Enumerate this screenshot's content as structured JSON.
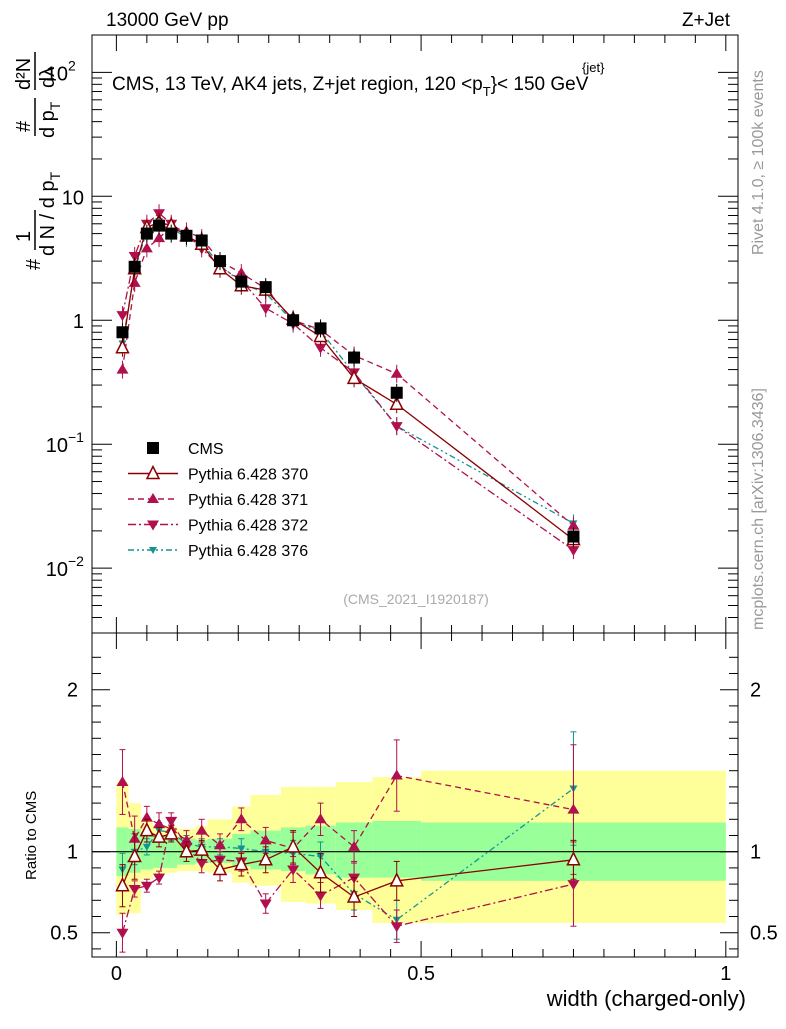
{
  "header": {
    "left": "13000 GeV pp",
    "right": "Z+Jet"
  },
  "side": {
    "rivet": "Rivet 4.1.0, ≥ 100k events",
    "mcplots": "mcplots.cern.ch [arXiv:1306.3436]"
  },
  "chart_data": {
    "type": "scatter",
    "title": "CMS, 13 TeV, AK4 jets, Z+jet region, 120 <p",
    "title_sup": "{jet}",
    "title_sub": "T",
    "title_end": "}< 150 GeV",
    "analysis_tag": "(CMS_2021_I1920187)",
    "xlabel": "width (charged-only)",
    "ylabel": {
      "hash": "#",
      "one": "1",
      "dN_pre": "d N / d p",
      "sub_T": "T",
      "dp_num": "#",
      "dp_den": "d p",
      "d2N": "d²N",
      "dlam": "dλ"
    },
    "ratio_ylabel": "Ratio to CMS",
    "xlim": [
      -0.04,
      1.02
    ],
    "ylim": [
      0.003,
      200
    ],
    "yscale": "log",
    "ratio_ylim": [
      0.35,
      2.35
    ],
    "x_ticks": [
      {
        "v": 0,
        "label": "0"
      },
      {
        "v": 0.5,
        "label": "0.5"
      },
      {
        "v": 1,
        "label": "1"
      }
    ],
    "y_ticks": [
      {
        "v": 100,
        "base": "10",
        "exp": "2"
      },
      {
        "v": 10,
        "base": "10",
        "exp": ""
      },
      {
        "v": 1,
        "base": "1",
        "exp": ""
      },
      {
        "v": 0.1,
        "base": "10",
        "exp": "−1"
      },
      {
        "v": 0.01,
        "base": "10",
        "exp": "−2"
      }
    ],
    "ratio_ticks": [
      {
        "v": 2,
        "label": "2"
      },
      {
        "v": 1,
        "label": "1"
      },
      {
        "v": 0.5,
        "label": "0.5"
      }
    ],
    "x": [
      0.01,
      0.03,
      0.05,
      0.07,
      0.09,
      0.115,
      0.14,
      0.17,
      0.205,
      0.245,
      0.29,
      0.335,
      0.39,
      0.46,
      0.75
    ],
    "x_lo": [
      0.0,
      0.02,
      0.04,
      0.06,
      0.08,
      0.1,
      0.13,
      0.15,
      0.19,
      0.22,
      0.27,
      0.31,
      0.36,
      0.42,
      0.5
    ],
    "x_hi": [
      0.02,
      0.04,
      0.06,
      0.08,
      0.1,
      0.13,
      0.15,
      0.19,
      0.22,
      0.27,
      0.31,
      0.36,
      0.42,
      0.5,
      1.0
    ],
    "band_green": [
      [
        0.85,
        1.15
      ],
      [
        0.87,
        1.14
      ],
      [
        0.89,
        1.12
      ],
      [
        0.9,
        1.1
      ],
      [
        0.9,
        1.1
      ],
      [
        0.92,
        1.08
      ],
      [
        0.93,
        1.07
      ],
      [
        0.93,
        1.08
      ],
      [
        0.91,
        1.11
      ],
      [
        0.89,
        1.13
      ],
      [
        0.88,
        1.15
      ],
      [
        0.86,
        1.16
      ],
      [
        0.84,
        1.18
      ],
      [
        0.84,
        1.19
      ],
      [
        0.82,
        1.18
      ]
    ],
    "band_yellow": [
      [
        0.61,
        1.43
      ],
      [
        0.62,
        1.3
      ],
      [
        0.83,
        1.19
      ],
      [
        0.86,
        1.16
      ],
      [
        0.87,
        1.16
      ],
      [
        0.88,
        1.14
      ],
      [
        0.88,
        1.16
      ],
      [
        0.87,
        1.2
      ],
      [
        0.81,
        1.28
      ],
      [
        0.79,
        1.35
      ],
      [
        0.69,
        1.4
      ],
      [
        0.68,
        1.4
      ],
      [
        0.64,
        1.43
      ],
      [
        0.56,
        1.46
      ],
      [
        0.56,
        1.5
      ]
    ],
    "series": [
      {
        "name": "CMS",
        "color": "#000000",
        "marker": "square",
        "line": "none",
        "values": [
          0.8,
          2.7,
          5.0,
          5.8,
          5.0,
          4.8,
          4.4,
          3.0,
          2.05,
          1.85,
          1.0,
          0.86,
          0.5,
          0.26,
          0.018
        ]
      },
      {
        "name": "Pythia 6.428 370",
        "color": "#8b0000",
        "marker": "open-triangle-up",
        "line": "solid",
        "values": [
          0.6,
          2.6,
          5.6,
          6.2,
          5.8,
          4.8,
          4.1,
          2.6,
          1.9,
          1.75,
          1.02,
          0.74,
          0.34,
          0.21,
          0.017
        ],
        "ratio": [
          0.79,
          0.97,
          1.13,
          1.09,
          1.11,
          1.0,
          1.01,
          0.89,
          0.92,
          0.95,
          1.03,
          0.87,
          0.72,
          0.82,
          0.95
        ],
        "ratio_err": [
          0.13,
          0.14,
          0.07,
          0.06,
          0.05,
          0.06,
          0.06,
          0.07,
          0.07,
          0.08,
          0.1,
          0.12,
          0.12,
          0.12,
          0.12
        ]
      },
      {
        "name": "Pythia 6.428 371",
        "color": "#b0104e",
        "marker": "triangle-up",
        "line": "dashed",
        "values": [
          0.4,
          2.0,
          3.8,
          4.6,
          5.7,
          5.2,
          4.6,
          3.0,
          2.4,
          1.8,
          1.0,
          0.84,
          0.52,
          0.37,
          0.022
        ],
        "ratio": [
          1.43,
          1.08,
          1.21,
          1.17,
          1.14,
          1.07,
          1.13,
          1.04,
          1.2,
          1.07,
          1.02,
          1.2,
          1.03,
          1.47,
          1.26
        ],
        "ratio_err": [
          0.2,
          0.14,
          0.07,
          0.07,
          0.06,
          0.06,
          0.07,
          0.07,
          0.07,
          0.08,
          0.1,
          0.1,
          0.1,
          0.22,
          0.4
        ]
      },
      {
        "name": "Pythia 6.428 372",
        "color": "#b0104e",
        "marker": "triangle-down",
        "line": "dashdot",
        "values": [
          1.1,
          3.3,
          6.0,
          7.3,
          6.0,
          4.9,
          3.8,
          2.7,
          2.1,
          1.25,
          0.94,
          0.6,
          0.38,
          0.14,
          0.014
        ],
        "ratio": [
          0.5,
          0.77,
          0.79,
          0.84,
          1.19,
          1.03,
          0.93,
          0.95,
          0.94,
          0.68,
          0.89,
          0.73,
          0.84,
          0.54,
          0.8
        ],
        "ratio_err": [
          0.12,
          0.05,
          0.04,
          0.04,
          0.05,
          0.05,
          0.06,
          0.05,
          0.06,
          0.06,
          0.08,
          0.08,
          0.1,
          0.1,
          0.26
        ]
      },
      {
        "name": "Pythia 6.428 376",
        "color": "#139494",
        "marker": "triangle-down-small",
        "line": "dashdotdot",
        "values": [
          0.65,
          2.5,
          5.3,
          6.3,
          5.6,
          4.6,
          4.2,
          2.8,
          2.0,
          1.65,
          0.98,
          0.82,
          0.37,
          0.14,
          0.023
        ],
        "ratio": [
          0.89,
          1.0,
          1.03,
          1.13,
          1.12,
          1.05,
          1.03,
          1.03,
          1.02,
          1.0,
          0.99,
          0.97,
          0.74,
          0.58,
          1.39
        ],
        "ratio_err": [
          0.1,
          0.08,
          0.05,
          0.05,
          0.05,
          0.05,
          0.05,
          0.05,
          0.06,
          0.07,
          0.08,
          0.09,
          0.1,
          0.12,
          0.35
        ]
      }
    ]
  }
}
